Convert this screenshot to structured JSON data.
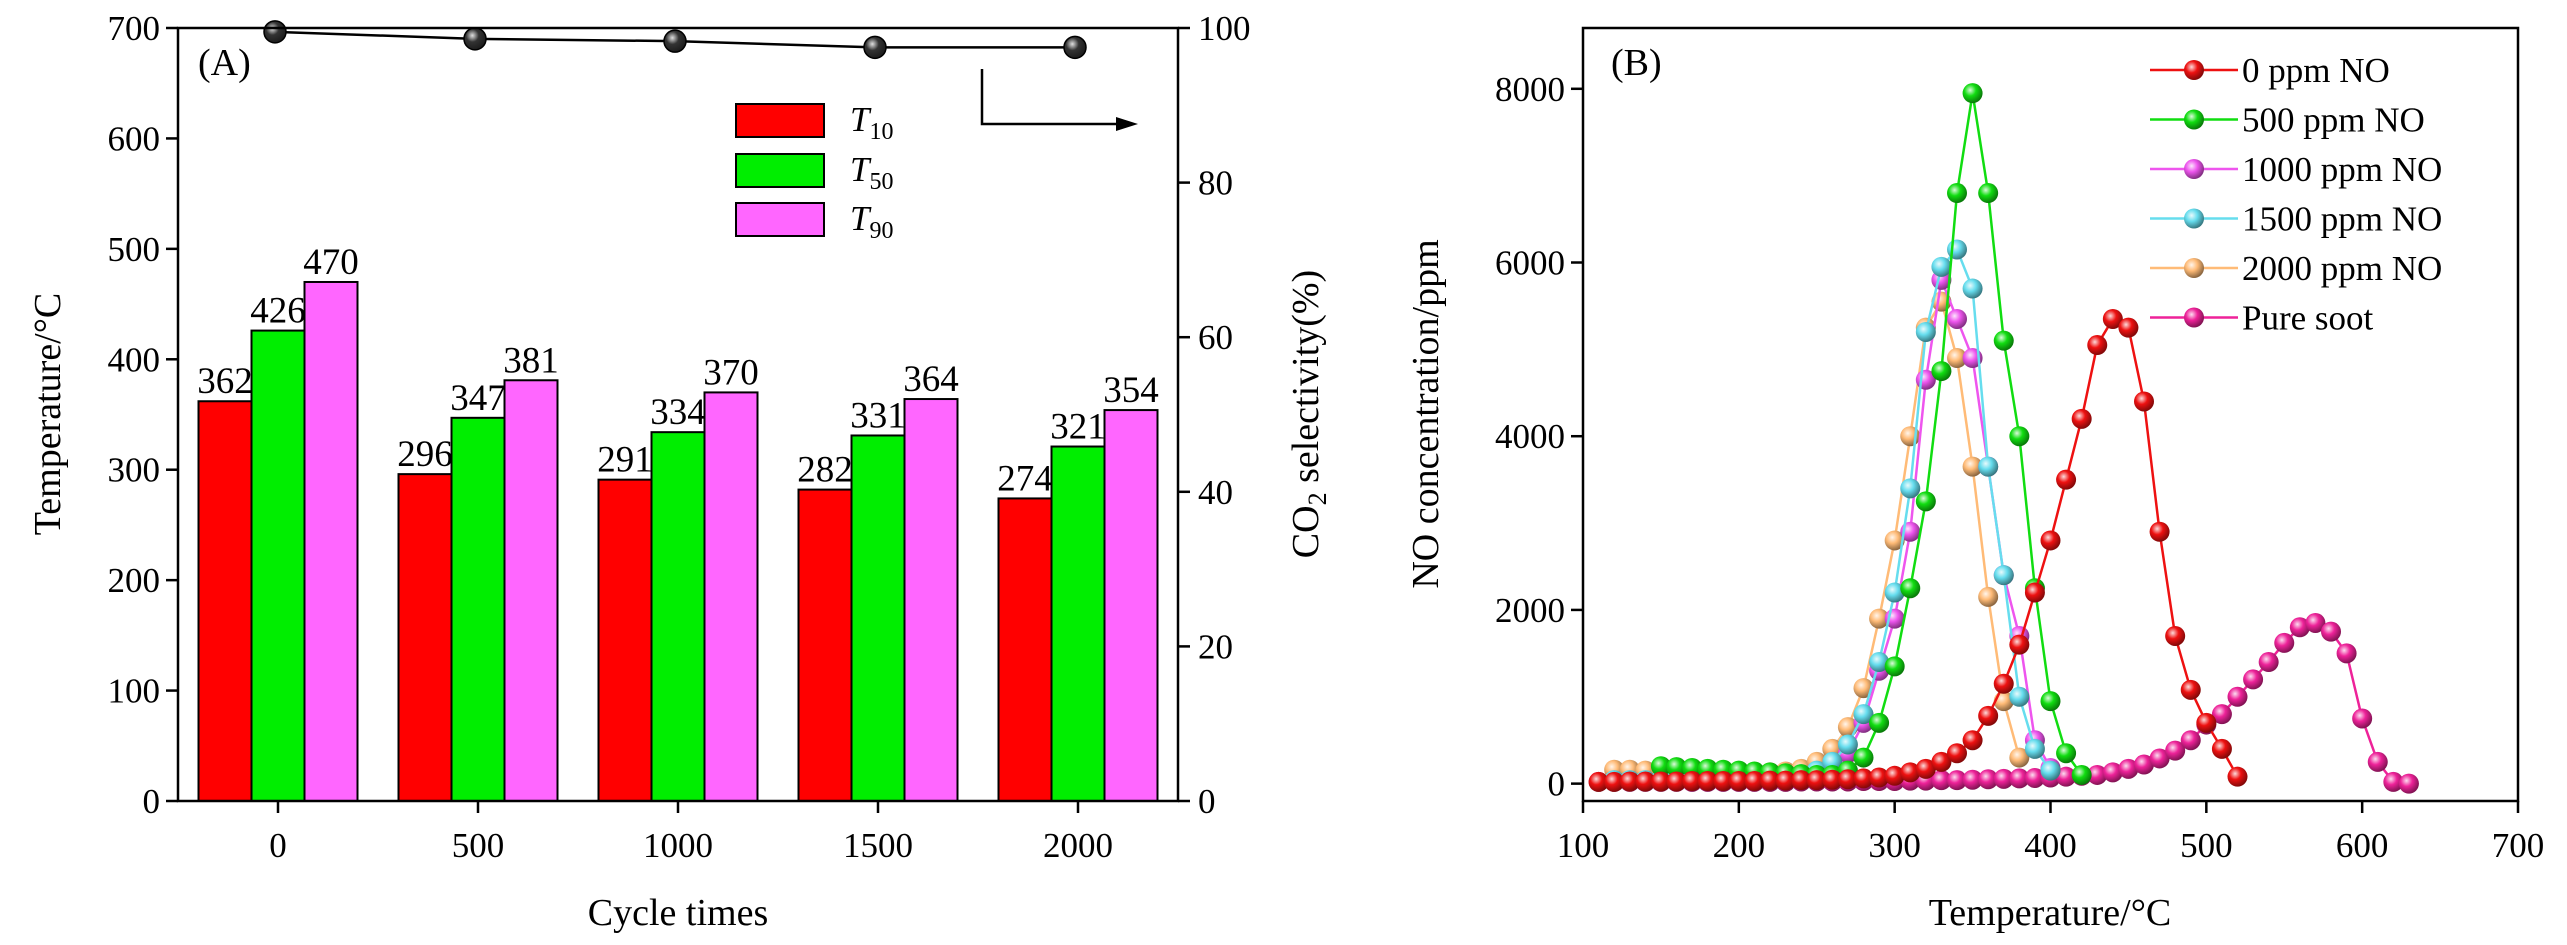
{
  "chart_data": [
    {
      "type": "bar",
      "panel_label": "(A)",
      "xlabel": "Cycle times",
      "ylabel": "Temperature/°C",
      "y2label": "CO₂ selectivity(%)",
      "y2label_parts": {
        "pre": "CO",
        "sub": "2",
        "post": " selectivity(%)"
      },
      "ylim": [
        0,
        700
      ],
      "y2lim": [
        0,
        100
      ],
      "yticks": [
        0,
        100,
        200,
        300,
        400,
        500,
        600,
        700
      ],
      "y2ticks": [
        0,
        20,
        40,
        60,
        80,
        100
      ],
      "categories": [
        "0",
        "500",
        "1000",
        "1500",
        "2000"
      ],
      "series": [
        {
          "name": "T10",
          "label_main": "T",
          "label_sub": "10",
          "color": "#ff0000",
          "values": [
            362,
            296,
            291,
            282,
            274
          ]
        },
        {
          "name": "T50",
          "label_main": "T",
          "label_sub": "50",
          "color": "#00ee00",
          "values": [
            426,
            347,
            334,
            331,
            321
          ]
        },
        {
          "name": "T90",
          "label_main": "T",
          "label_sub": "90",
          "color": "#ff66ff",
          "values": [
            470,
            381,
            370,
            364,
            354
          ]
        }
      ],
      "data_labels": [
        [
          "362",
          "296",
          "291",
          "282",
          "274"
        ],
        [
          "426",
          "347",
          "334",
          "331",
          "321"
        ],
        [
          "470",
          "381",
          "370",
          "364",
          "354"
        ]
      ],
      "co2_selectivity": {
        "axis": "right",
        "color": "#000000",
        "values": [
          99.5,
          98.6,
          98.3,
          97.5,
          97.5
        ]
      },
      "legend_position": "top-center"
    },
    {
      "type": "line",
      "panel_label": "(B)",
      "xlabel": "Temperature/°C",
      "ylabel": "NO concentration/ppm",
      "xlim": [
        100,
        700
      ],
      "ylim": [
        -200,
        8700
      ],
      "xticks": [
        100,
        200,
        300,
        400,
        500,
        600,
        700
      ],
      "yticks": [
        0,
        2000,
        4000,
        6000,
        8000
      ],
      "legend_position": "top-right",
      "series": [
        {
          "name": "0 ppm NO",
          "color": "#ee1111",
          "x": [
            110,
            120,
            130,
            140,
            150,
            160,
            170,
            180,
            190,
            200,
            210,
            220,
            230,
            240,
            250,
            260,
            270,
            280,
            290,
            300,
            310,
            320,
            330,
            340,
            350,
            360,
            370,
            380,
            390,
            400,
            410,
            420,
            430,
            440,
            450,
            460,
            470,
            480,
            490,
            500,
            510,
            520
          ],
          "y": [
            20,
            20,
            25,
            25,
            25,
            25,
            30,
            30,
            30,
            30,
            30,
            35,
            35,
            40,
            40,
            45,
            50,
            60,
            70,
            90,
            130,
            170,
            250,
            350,
            500,
            780,
            1150,
            1600,
            2200,
            2800,
            3500,
            4200,
            5050,
            5350,
            5250,
            4400,
            2900,
            1700,
            1080,
            700,
            400,
            80
          ]
        },
        {
          "name": "500 ppm NO",
          "color": "#11dd11",
          "x": [
            150,
            160,
            170,
            180,
            190,
            200,
            210,
            220,
            230,
            240,
            250,
            260,
            270,
            280,
            290,
            300,
            310,
            320,
            330,
            340,
            350,
            360,
            370,
            380,
            390,
            400,
            410,
            420
          ],
          "y": [
            200,
            190,
            180,
            170,
            160,
            150,
            140,
            130,
            120,
            110,
            100,
            100,
            150,
            300,
            700,
            1350,
            2250,
            3250,
            4750,
            6800,
            7950,
            6800,
            5100,
            4000,
            2250,
            950,
            350,
            100
          ]
        },
        {
          "name": "1000 ppm NO",
          "color": "#ee55ee",
          "x": [
            120,
            130,
            140,
            150,
            160,
            170,
            180,
            190,
            200,
            210,
            220,
            230,
            240,
            250,
            260,
            270,
            280,
            290,
            300,
            310,
            320,
            330,
            340,
            350,
            360,
            370,
            380,
            390,
            400
          ],
          "y": [
            30,
            30,
            30,
            30,
            35,
            35,
            35,
            40,
            40,
            45,
            50,
            60,
            80,
            120,
            200,
            350,
            700,
            1300,
            1900,
            2900,
            4650,
            5800,
            5350,
            4900,
            3650,
            2400,
            1700,
            500,
            180
          ]
        },
        {
          "name": "1500 ppm NO",
          "color": "#66ddee",
          "x": [
            120,
            130,
            140,
            150,
            160,
            170,
            180,
            190,
            200,
            210,
            220,
            230,
            240,
            250,
            260,
            270,
            280,
            290,
            300,
            310,
            320,
            330,
            340,
            350,
            360,
            370,
            380,
            390,
            400
          ],
          "y": [
            40,
            40,
            40,
            45,
            45,
            50,
            50,
            55,
            60,
            65,
            75,
            90,
            110,
            150,
            250,
            450,
            800,
            1400,
            2200,
            3400,
            5200,
            5950,
            6150,
            5700,
            3650,
            2400,
            1000,
            400,
            150
          ]
        },
        {
          "name": "2000 ppm NO",
          "color": "#ffbb77",
          "x": [
            120,
            130,
            140,
            150,
            160,
            170,
            180,
            190,
            200,
            210,
            220,
            230,
            240,
            250,
            260,
            270,
            280,
            290,
            300,
            310,
            320,
            330,
            340,
            350,
            360,
            370,
            380
          ],
          "y": [
            160,
            160,
            150,
            150,
            140,
            130,
            120,
            120,
            120,
            120,
            130,
            140,
            170,
            250,
            400,
            650,
            1100,
            1900,
            2800,
            4000,
            5250,
            5550,
            4900,
            3650,
            2150,
            950,
            300
          ]
        },
        {
          "name": "Pure soot",
          "color": "#ee2299",
          "x": [
            110,
            120,
            130,
            140,
            150,
            160,
            170,
            180,
            190,
            200,
            210,
            220,
            230,
            240,
            250,
            260,
            270,
            280,
            290,
            300,
            310,
            320,
            330,
            340,
            350,
            360,
            370,
            380,
            390,
            400,
            410,
            420,
            430,
            440,
            450,
            460,
            470,
            480,
            490,
            500,
            510,
            520,
            530,
            540,
            550,
            560,
            570,
            580,
            590,
            600,
            610,
            620,
            630
          ],
          "y": [
            20,
            20,
            20,
            20,
            20,
            20,
            20,
            20,
            20,
            20,
            20,
            20,
            20,
            25,
            25,
            25,
            25,
            30,
            30,
            30,
            35,
            35,
            40,
            40,
            45,
            50,
            55,
            60,
            65,
            70,
            80,
            90,
            100,
            130,
            170,
            220,
            290,
            380,
            500,
            680,
            800,
            1000,
            1200,
            1400,
            1620,
            1800,
            1850,
            1750,
            1500,
            750,
            250,
            20,
            0
          ]
        }
      ]
    }
  ]
}
